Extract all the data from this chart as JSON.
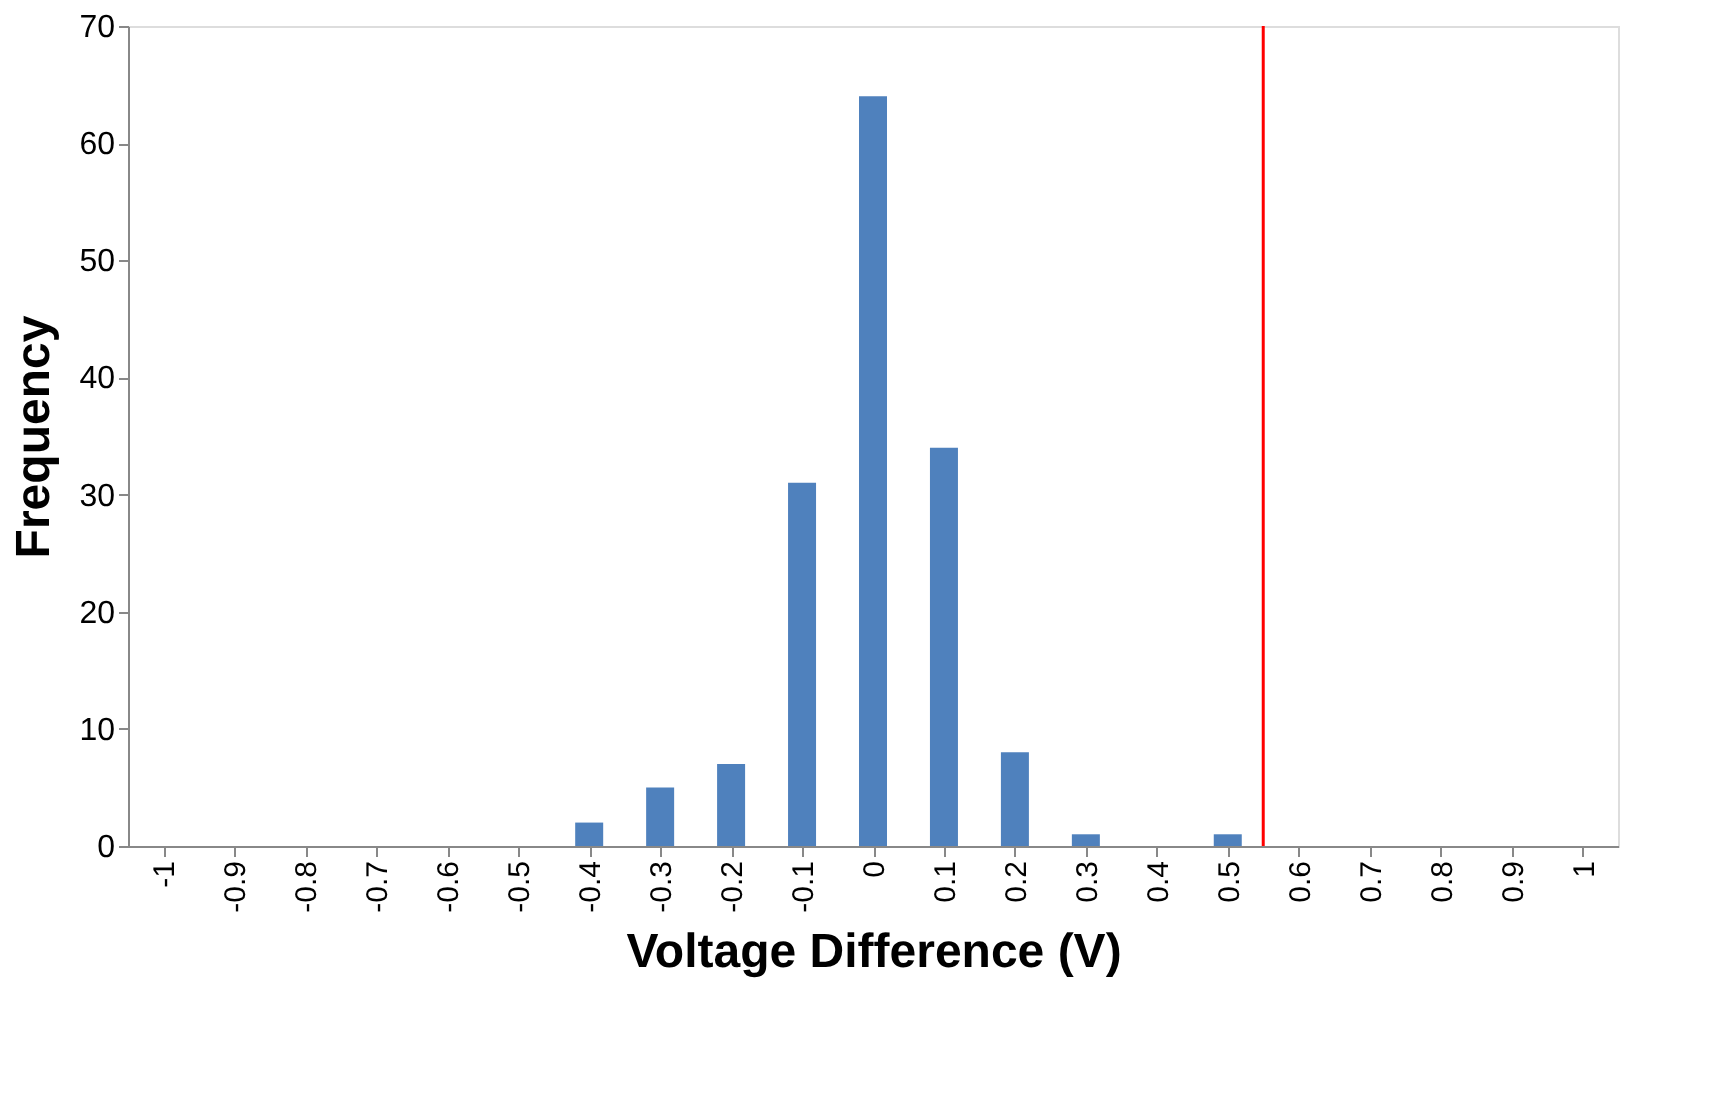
{
  "chart_data": {
    "type": "bar",
    "xlabel": "Voltage Difference (V)",
    "ylabel": "Frequency",
    "x": [
      -1,
      -0.9,
      -0.8,
      -0.7,
      -0.6,
      -0.5,
      -0.4,
      -0.3,
      -0.2,
      -0.1,
      0,
      0.1,
      0.2,
      0.3,
      0.4,
      0.5,
      0.6,
      0.7,
      0.8,
      0.9,
      1
    ],
    "series": [
      {
        "color": "#4f81bd",
        "values": [
          0,
          0,
          0,
          0,
          0,
          0,
          2,
          5,
          7,
          31,
          64,
          34,
          8,
          1,
          0,
          1,
          0,
          0,
          0,
          0,
          0
        ]
      }
    ],
    "xlim": [
      -1.05,
      1.05
    ],
    "xticks": [
      -1,
      -0.9,
      -0.8,
      -0.7,
      -0.6,
      -0.5,
      -0.4,
      -0.3,
      -0.2,
      -0.1,
      0,
      0.1,
      0.2,
      0.3,
      0.4,
      0.5,
      0.6,
      0.7,
      0.8,
      0.9,
      1
    ],
    "ylim": [
      0,
      70
    ],
    "yticks": [
      0,
      10,
      20,
      30,
      40,
      50,
      60,
      70
    ],
    "ref_lines": [
      {
        "axis": "x",
        "value": 0.55,
        "color": "#ff0000"
      }
    ],
    "grid": false,
    "legend": false
  }
}
